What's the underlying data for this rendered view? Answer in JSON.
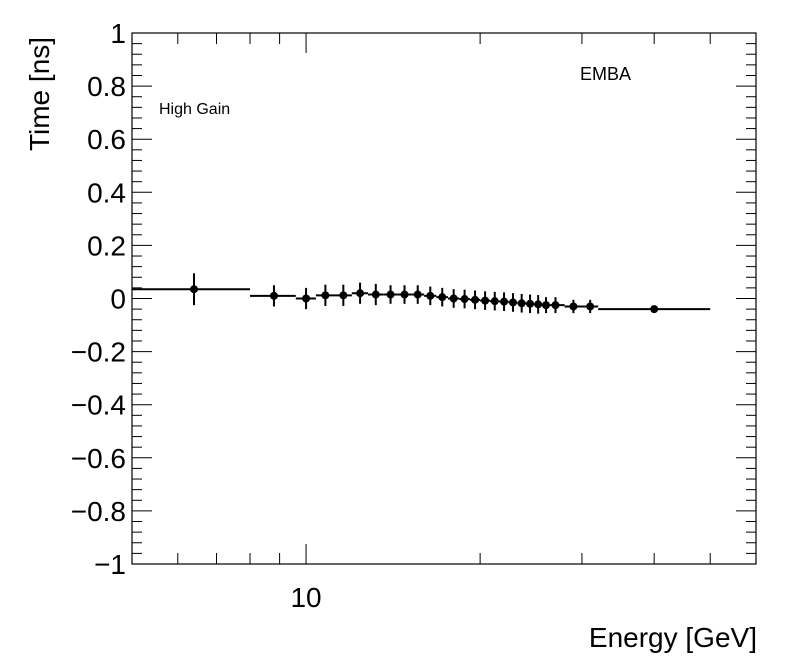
{
  "chart_data": {
    "type": "scatter",
    "title": "",
    "xlabel": "Energy [GeV]",
    "ylabel": "Time [ns]",
    "x_scale": "log",
    "xlim": [
      5,
      60
    ],
    "ylim": [
      -1,
      1
    ],
    "x_tick_labels": [
      {
        "value": 10,
        "label": "10"
      }
    ],
    "y_ticks": [
      -1,
      -0.8,
      -0.6,
      -0.4,
      -0.2,
      0,
      0.2,
      0.4,
      0.6,
      0.8,
      1
    ],
    "y_tick_labels": [
      "−1",
      "−0.8",
      "−0.6",
      "−0.4",
      "−0.2",
      "0",
      "0.2",
      "0.4",
      "0.6",
      "0.8",
      "1"
    ],
    "annotations": [
      "High Gain",
      "EMBA"
    ],
    "grid": false,
    "legend": false,
    "series": [
      {
        "points": [
          {
            "x": 6.4,
            "y": 0.035,
            "xlo": 5.0,
            "xhi": 8.0,
            "yerr": 0.06
          },
          {
            "x": 8.8,
            "y": 0.01,
            "xlo": 8.0,
            "xhi": 9.6,
            "yerr": 0.04
          },
          {
            "x": 10.0,
            "y": 0.0,
            "xlo": 9.6,
            "xhi": 10.4,
            "yerr": 0.04
          },
          {
            "x": 10.8,
            "y": 0.012,
            "xlo": 10.4,
            "xhi": 11.2,
            "yerr": 0.04
          },
          {
            "x": 11.6,
            "y": 0.012,
            "xlo": 11.2,
            "xhi": 12.0,
            "yerr": 0.04
          },
          {
            "x": 12.4,
            "y": 0.02,
            "xlo": 12.0,
            "xhi": 12.8,
            "yerr": 0.04
          },
          {
            "x": 13.2,
            "y": 0.015,
            "xlo": 12.8,
            "xhi": 13.6,
            "yerr": 0.04
          },
          {
            "x": 14.0,
            "y": 0.015,
            "xlo": 13.6,
            "xhi": 14.4,
            "yerr": 0.035
          },
          {
            "x": 14.8,
            "y": 0.015,
            "xlo": 14.4,
            "xhi": 15.2,
            "yerr": 0.035
          },
          {
            "x": 15.6,
            "y": 0.015,
            "xlo": 15.2,
            "xhi": 16.0,
            "yerr": 0.035
          },
          {
            "x": 16.4,
            "y": 0.01,
            "xlo": 16.0,
            "xhi": 16.8,
            "yerr": 0.035
          },
          {
            "x": 17.2,
            "y": 0.005,
            "xlo": 16.8,
            "xhi": 17.6,
            "yerr": 0.035
          },
          {
            "x": 18.0,
            "y": 0.0,
            "xlo": 17.6,
            "xhi": 18.4,
            "yerr": 0.035
          },
          {
            "x": 18.8,
            "y": -0.002,
            "xlo": 18.4,
            "xhi": 19.2,
            "yerr": 0.035
          },
          {
            "x": 19.6,
            "y": -0.005,
            "xlo": 19.2,
            "xhi": 20.0,
            "yerr": 0.035
          },
          {
            "x": 20.4,
            "y": -0.008,
            "xlo": 20.0,
            "xhi": 20.8,
            "yerr": 0.035
          },
          {
            "x": 21.2,
            "y": -0.01,
            "xlo": 20.8,
            "xhi": 21.6,
            "yerr": 0.035
          },
          {
            "x": 22.0,
            "y": -0.012,
            "xlo": 21.6,
            "xhi": 22.4,
            "yerr": 0.035
          },
          {
            "x": 22.8,
            "y": -0.015,
            "xlo": 22.4,
            "xhi": 23.2,
            "yerr": 0.035
          },
          {
            "x": 23.6,
            "y": -0.018,
            "xlo": 23.2,
            "xhi": 24.0,
            "yerr": 0.035
          },
          {
            "x": 24.4,
            "y": -0.02,
            "xlo": 24.0,
            "xhi": 24.8,
            "yerr": 0.035
          },
          {
            "x": 25.2,
            "y": -0.022,
            "xlo": 24.8,
            "xhi": 25.6,
            "yerr": 0.035
          },
          {
            "x": 26.0,
            "y": -0.025,
            "xlo": 25.6,
            "xhi": 26.4,
            "yerr": 0.03
          },
          {
            "x": 27.0,
            "y": -0.025,
            "xlo": 26.4,
            "xhi": 28.0,
            "yerr": 0.03
          },
          {
            "x": 29.0,
            "y": -0.03,
            "xlo": 28.0,
            "xhi": 30.0,
            "yerr": 0.025
          },
          {
            "x": 31.0,
            "y": -0.03,
            "xlo": 30.0,
            "xhi": 32.0,
            "yerr": 0.025
          },
          {
            "x": 40.0,
            "y": -0.04,
            "xlo": 32.0,
            "xhi": 50.0,
            "yerr": 0.01
          }
        ]
      }
    ]
  }
}
